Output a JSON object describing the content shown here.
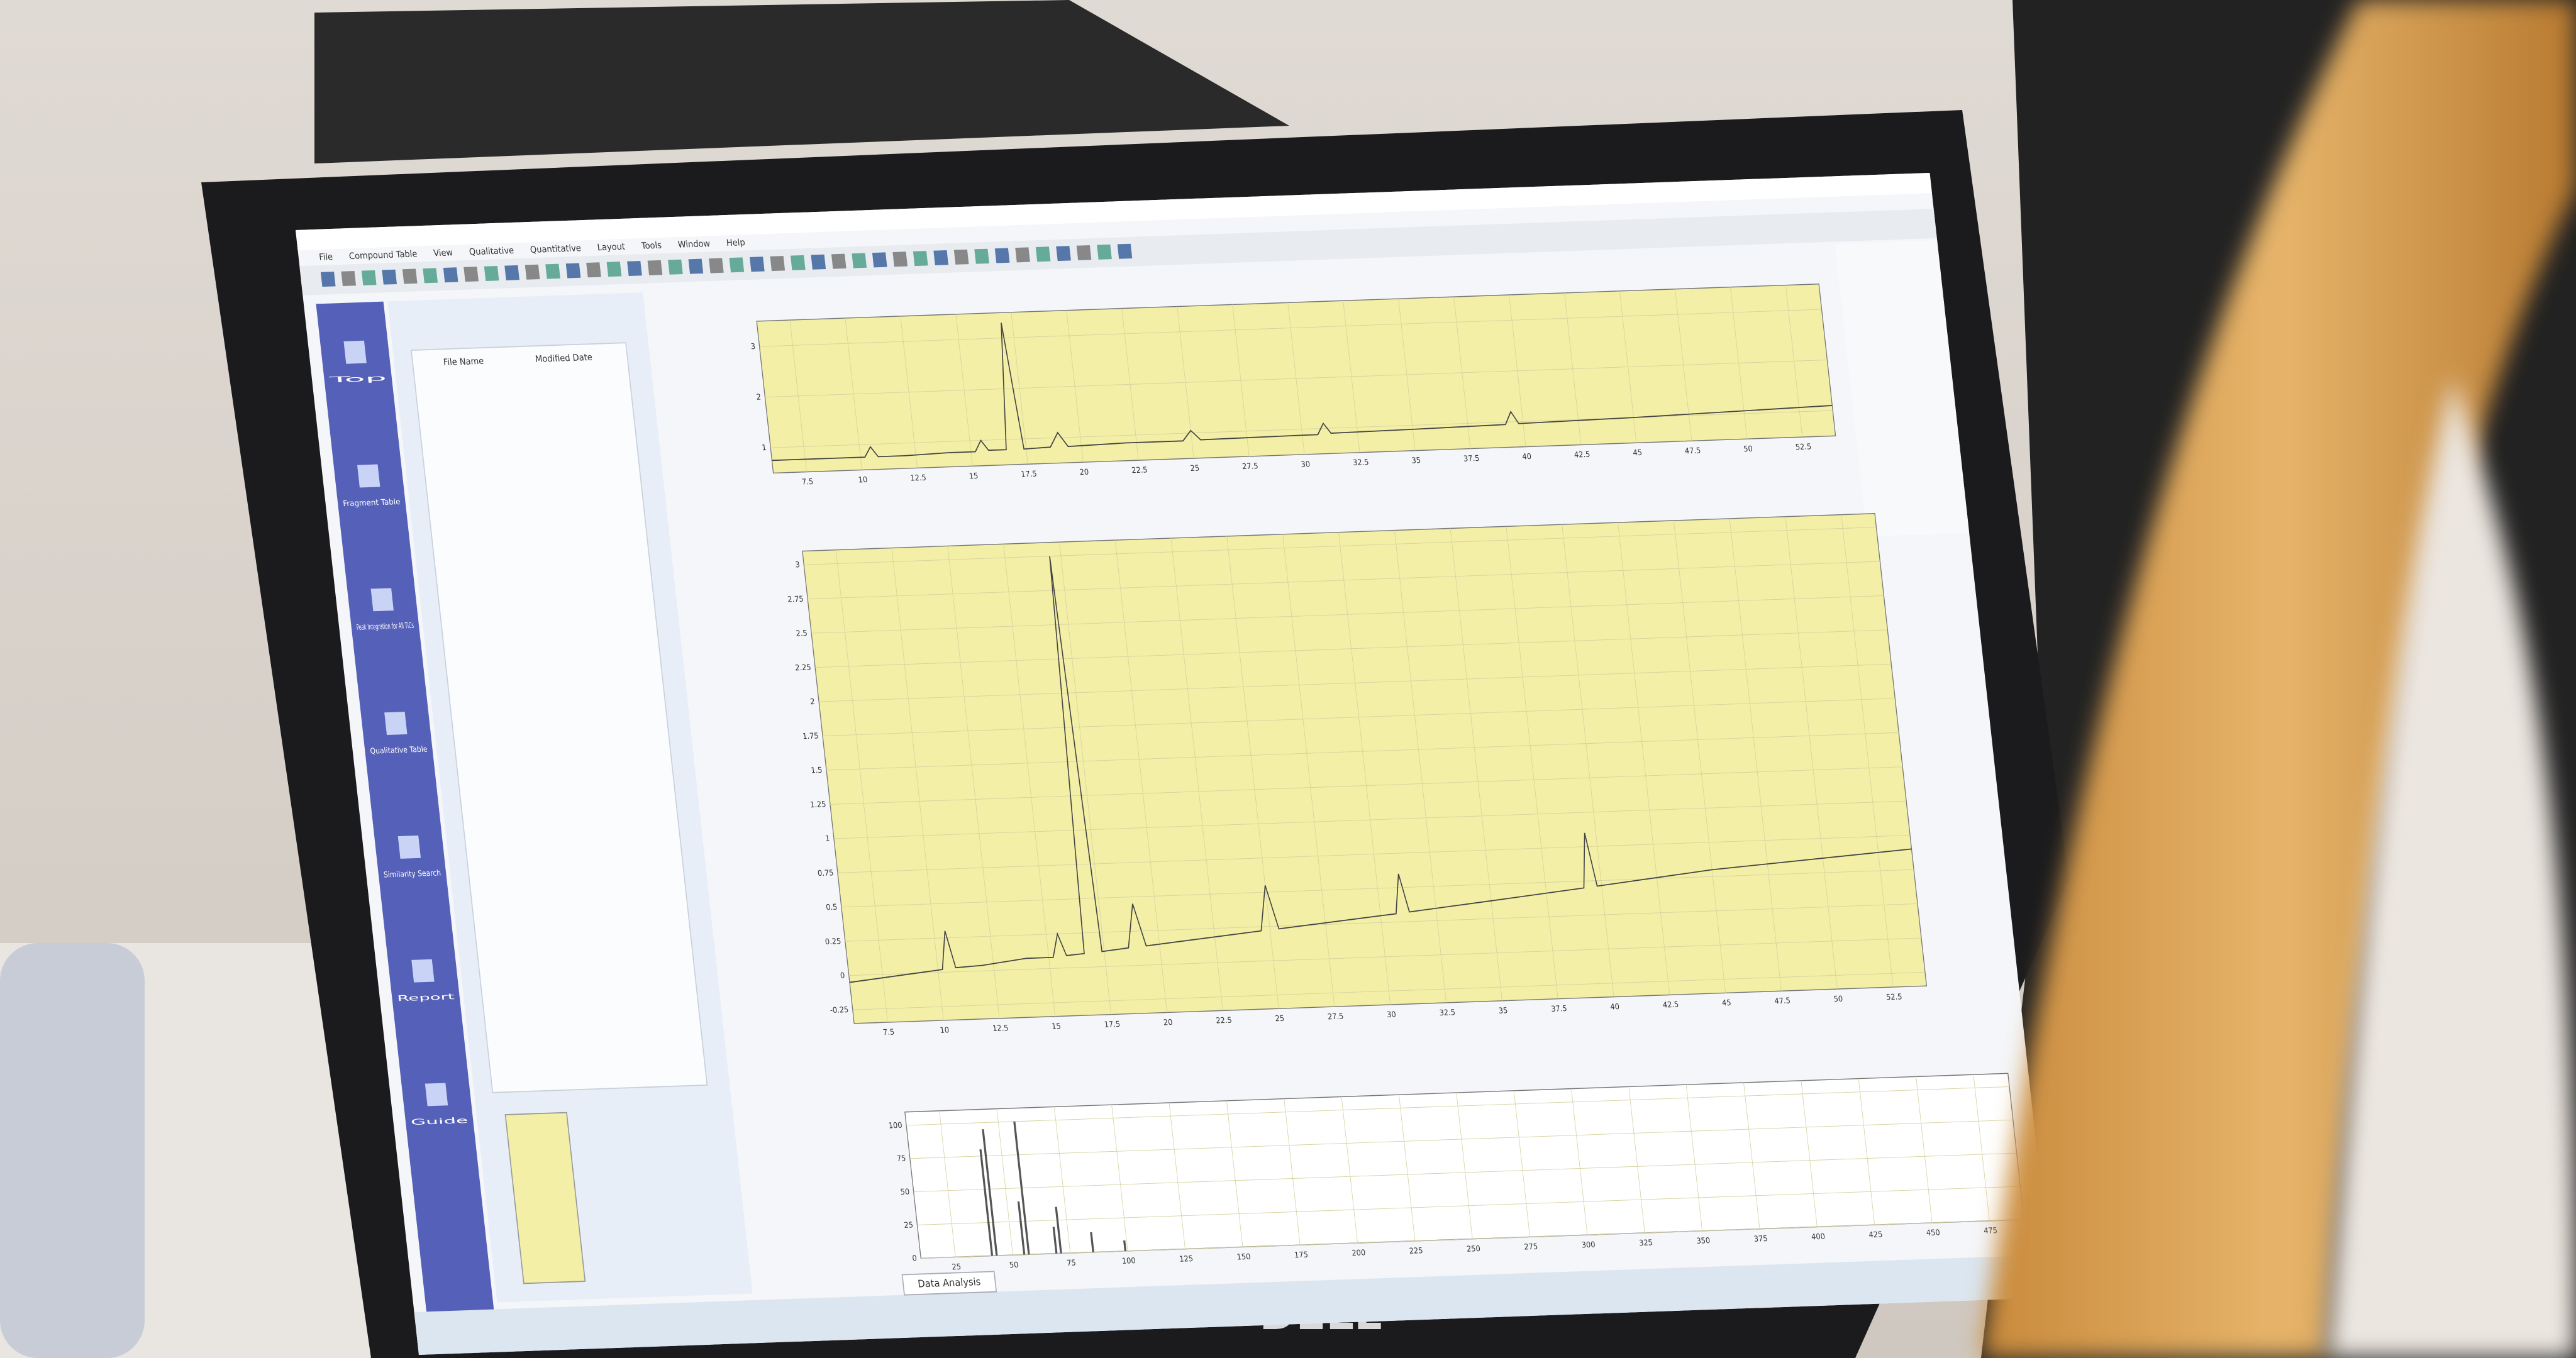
{
  "monitor": {
    "brand": "DELL"
  },
  "window": {
    "menu": [
      "File",
      "Compound Table",
      "View",
      "Qualitative",
      "Quantitative",
      "Layout",
      "Tools",
      "Window",
      "Help"
    ]
  },
  "sidebar": [
    "Top",
    "Fragment Table",
    "Peak Integration for All TICs",
    "Qualitative Table",
    "Similarity Search",
    "Report",
    "Guide"
  ],
  "explorer": {
    "columns": [
      "File Name",
      "Modified Date"
    ]
  },
  "tab": "Data Analysis",
  "chart_data": [
    {
      "type": "line",
      "color": "#444444",
      "background": "#f3efa6",
      "grid": true,
      "x": [
        6,
        9,
        10.2,
        10.5,
        10.8,
        12,
        14,
        15.2,
        15.5,
        15.8,
        16.6,
        17,
        17.4,
        18.6,
        19,
        19.4,
        22,
        24.6,
        25,
        25.4,
        30,
        30.7,
        31,
        31.3,
        35,
        39.2,
        39.5,
        39.8,
        45,
        54
      ],
      "values": [
        0.75,
        0.75,
        0.75,
        0.95,
        0.75,
        0.75,
        0.78,
        0.78,
        1.0,
        0.8,
        0.8,
        3.3,
        0.8,
        0.82,
        1.1,
        0.82,
        0.85,
        0.85,
        1.05,
        0.86,
        0.88,
        0.88,
        1.1,
        0.9,
        0.92,
        0.95,
        1.2,
        0.96,
        1.0,
        1.1
      ],
      "xlim": [
        6,
        54
      ],
      "xticks": [
        7.5,
        10.0,
        12.5,
        15.0,
        17.5,
        20.0,
        22.5,
        25.0,
        27.5,
        30.0,
        32.5,
        35.0,
        37.5,
        40.0,
        42.5,
        45.0,
        47.5,
        50.0,
        52.5
      ],
      "ylim": [
        0.5,
        3.5
      ],
      "yticks": [
        1.0,
        2.0,
        3.0
      ]
    },
    {
      "type": "line",
      "color": "#444444",
      "background": "#f3efa6",
      "grid": true,
      "x": [
        6,
        9,
        10.2,
        10.5,
        10.8,
        12,
        14,
        15.2,
        15.5,
        15.8,
        16.6,
        17,
        17.4,
        18.6,
        19,
        19.4,
        22,
        24.6,
        25,
        25.4,
        30,
        30.7,
        31,
        31.3,
        35,
        39.2,
        39.5,
        39.8,
        45,
        54
      ],
      "values": [
        -0.05,
        0.0,
        0.02,
        0.3,
        0.03,
        0.04,
        0.08,
        0.08,
        0.25,
        0.09,
        0.1,
        3.0,
        0.11,
        0.13,
        0.45,
        0.14,
        0.18,
        0.22,
        0.55,
        0.23,
        0.3,
        0.31,
        0.6,
        0.32,
        0.38,
        0.45,
        0.85,
        0.46,
        0.55,
        0.65
      ],
      "xlim": [
        6,
        54
      ],
      "xticks": [
        7.5,
        10.0,
        12.5,
        15.0,
        17.5,
        20.0,
        22.5,
        25.0,
        27.5,
        30.0,
        32.5,
        35.0,
        37.5,
        40.0,
        42.5,
        45.0,
        47.5,
        50.0,
        52.5
      ],
      "ylim": [
        -0.35,
        3.1
      ],
      "yticks": [
        -0.25,
        0.0,
        0.25,
        0.5,
        0.75,
        1.0,
        1.25,
        1.5,
        1.75,
        2.0,
        2.25,
        2.5,
        2.75,
        3.0
      ]
    },
    {
      "type": "bar",
      "color": "#555555",
      "background": "#ffffff",
      "grid": true,
      "x": [
        41,
        43,
        55,
        57,
        69,
        71,
        85,
        99
      ],
      "values": [
        80,
        95,
        40,
        100,
        20,
        35,
        15,
        8
      ],
      "xlim": [
        10,
        490
      ],
      "xticks": [
        25.0,
        50.0,
        75.0,
        100.0,
        125.0,
        150.0,
        175.0,
        200.0,
        225.0,
        250.0,
        275.0,
        300.0,
        325.0,
        350.0,
        375.0,
        400.0,
        425.0,
        450.0,
        475.0
      ],
      "ylim": [
        0,
        110
      ],
      "yticks": [
        0,
        25,
        50,
        75,
        100
      ]
    }
  ]
}
